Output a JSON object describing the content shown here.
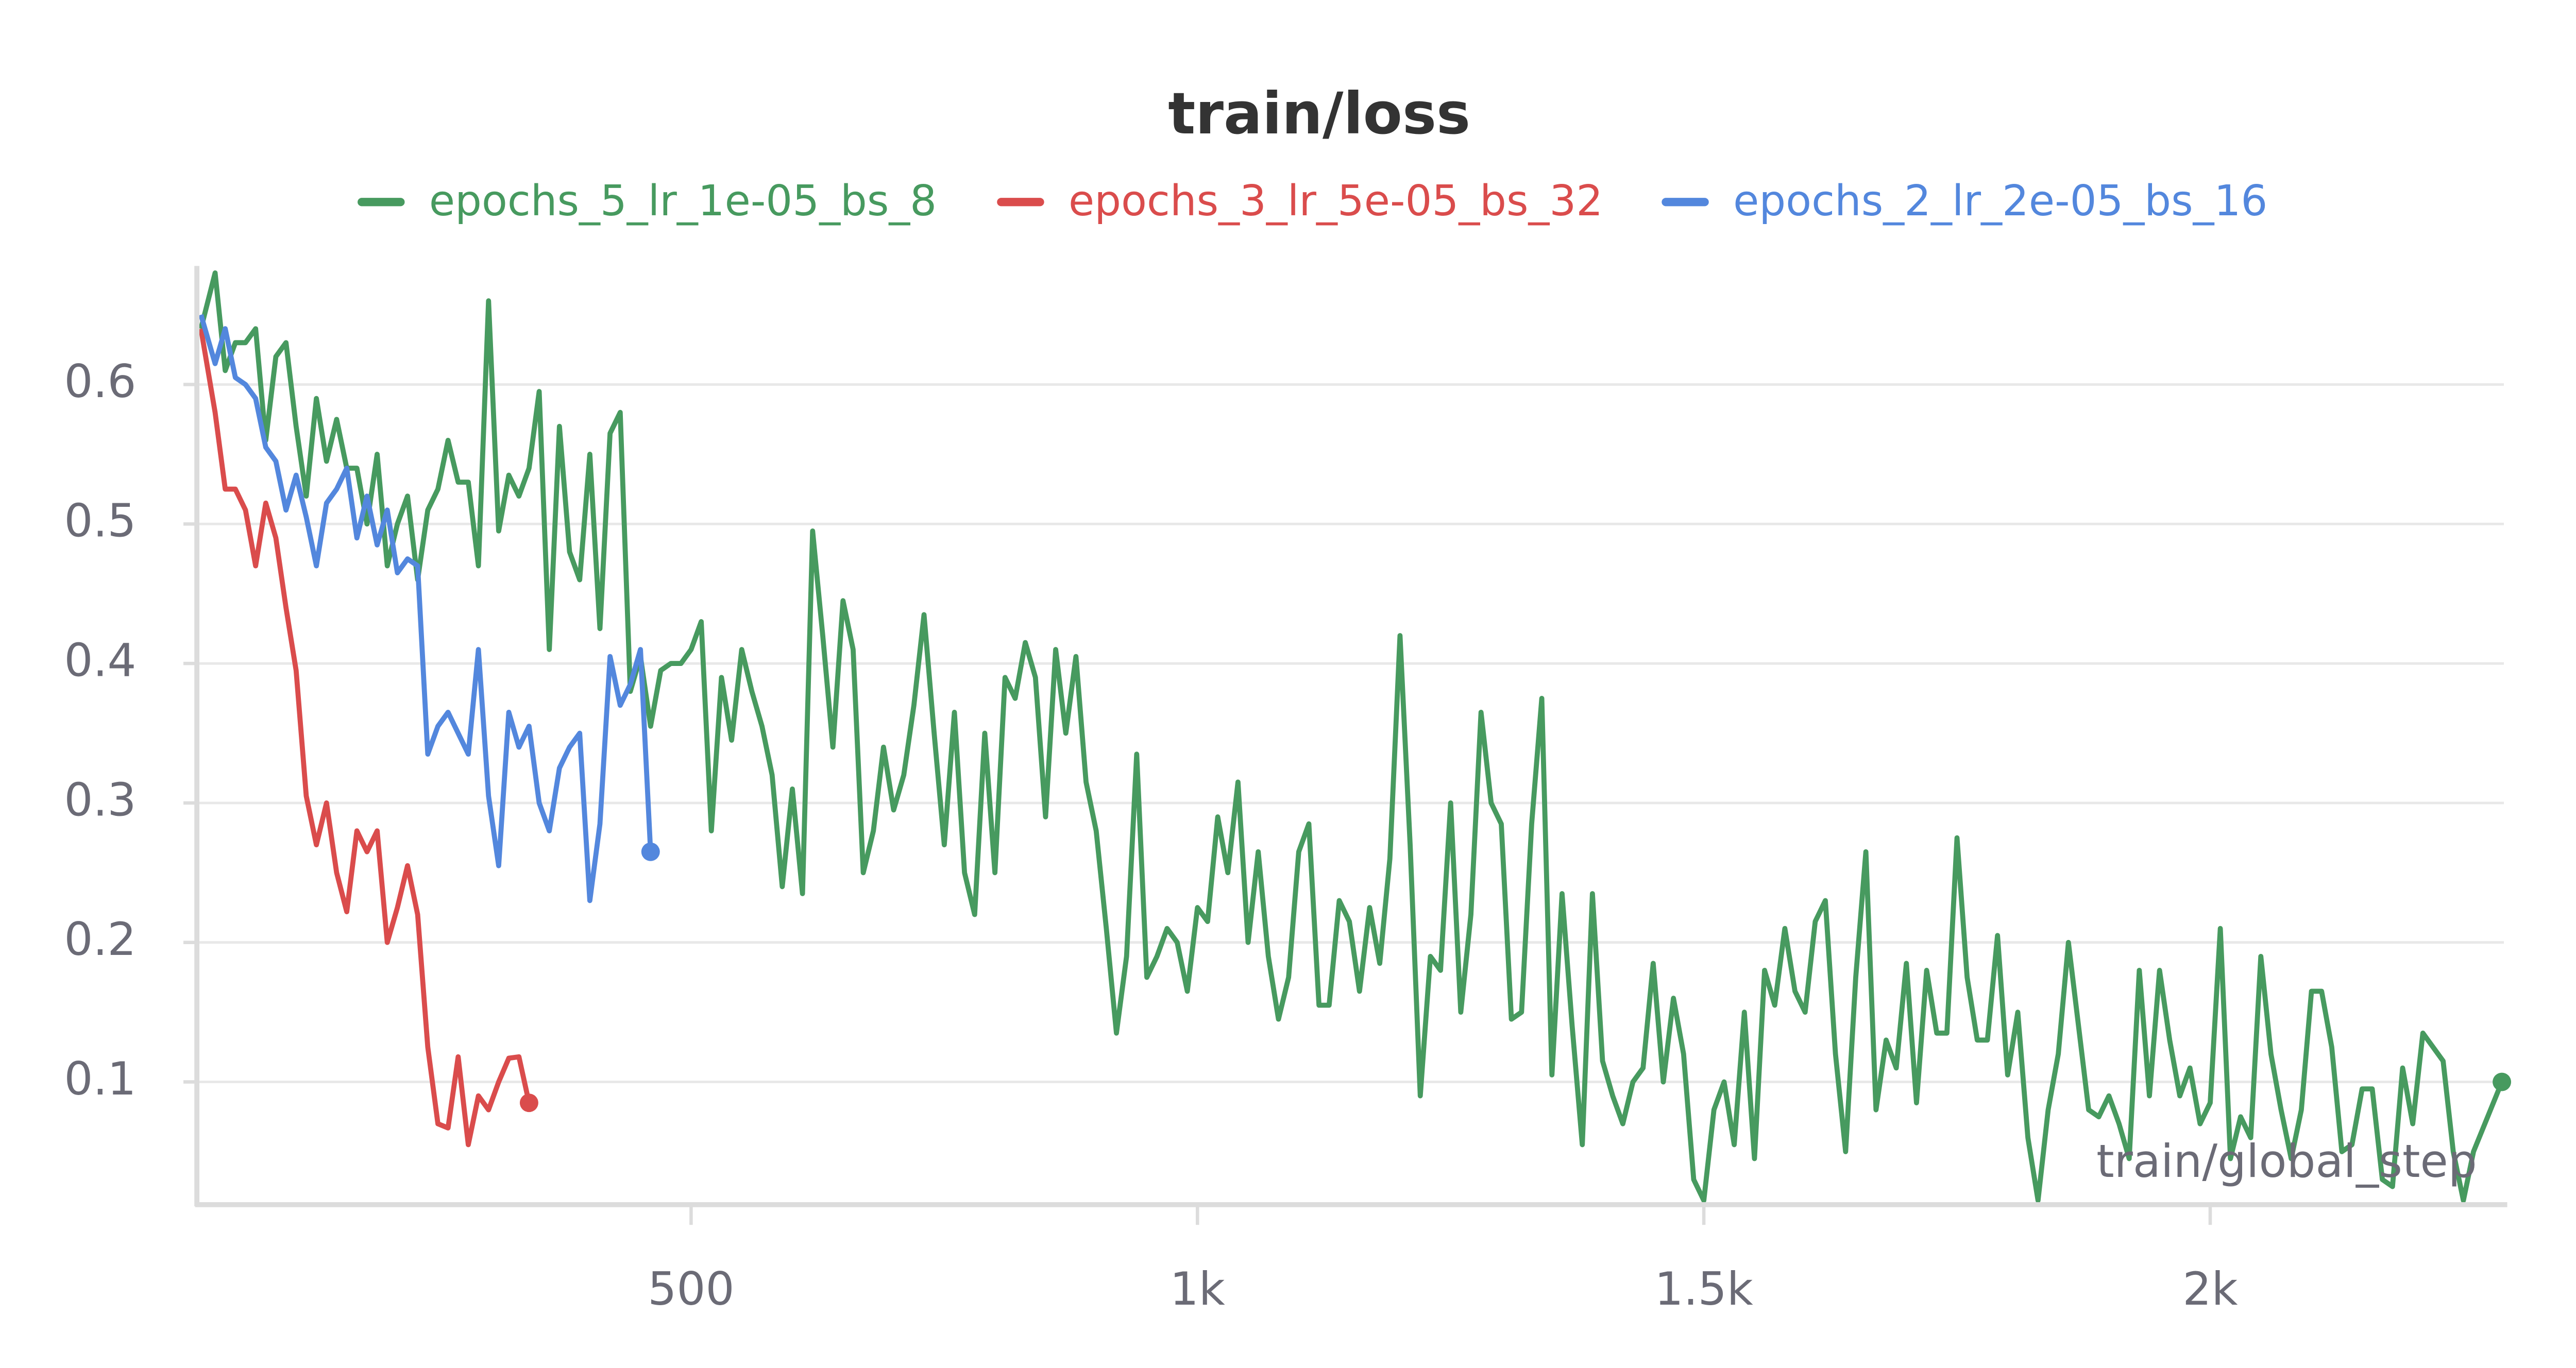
{
  "chart_data": {
    "type": "line",
    "title": "train/loss",
    "xlabel": "train/global_step",
    "xlim": [
      12,
      2290
    ],
    "ylim": [
      0.012,
      0.685
    ],
    "xticks": [
      500,
      {
        "value": 1000,
        "label": "1k"
      },
      {
        "value": 1500,
        "label": "1.5k"
      },
      {
        "value": 2000,
        "label": "2k"
      }
    ],
    "yticks": [
      0.1,
      0.2,
      0.3,
      0.4,
      0.5,
      0.6
    ],
    "grid": true,
    "legend": "top",
    "series": [
      {
        "name": "epochs_5_lr_1e-05_bs_8",
        "color": "#479a5f",
        "x": [
          16,
          30,
          40,
          50,
          60,
          70,
          80,
          90,
          100,
          110,
          120,
          130,
          140,
          150,
          160,
          170,
          180,
          190,
          200,
          210,
          220,
          230,
          240,
          250,
          260,
          270,
          280,
          290,
          300,
          310,
          320,
          330,
          340,
          350,
          360,
          370,
          380,
          390,
          400,
          410,
          420,
          430,
          440,
          450,
          460,
          470,
          480,
          490,
          500,
          510,
          520,
          530,
          540,
          550,
          560,
          570,
          580,
          590,
          600,
          610,
          620,
          630,
          640,
          650,
          660,
          670,
          680,
          690,
          700,
          710,
          720,
          730,
          740,
          750,
          760,
          770,
          780,
          790,
          800,
          810,
          820,
          830,
          840,
          850,
          860,
          870,
          880,
          890,
          900,
          910,
          920,
          930,
          940,
          950,
          960,
          970,
          980,
          990,
          1000,
          1010,
          1020,
          1030,
          1040,
          1050,
          1060,
          1070,
          1080,
          1090,
          1100,
          1110,
          1120,
          1130,
          1140,
          1150,
          1160,
          1170,
          1180,
          1190,
          1200,
          1210,
          1220,
          1230,
          1240,
          1250,
          1260,
          1270,
          1280,
          1290,
          1300,
          1310,
          1320,
          1330,
          1340,
          1350,
          1360,
          1370,
          1380,
          1390,
          1400,
          1410,
          1420,
          1430,
          1440,
          1450,
          1460,
          1470,
          1480,
          1490,
          1500,
          1510,
          1520,
          1530,
          1540,
          1550,
          1560,
          1570,
          1580,
          1590,
          1600,
          1610,
          1620,
          1630,
          1640,
          1650,
          1660,
          1670,
          1680,
          1690,
          1700,
          1710,
          1720,
          1730,
          1740,
          1750,
          1760,
          1770,
          1780,
          1790,
          1800,
          1810,
          1820,
          1830,
          1840,
          1850,
          1860,
          1870,
          1880,
          1890,
          1900,
          1910,
          1920,
          1930,
          1940,
          1950,
          1960,
          1970,
          1980,
          1990,
          2000,
          2010,
          2020,
          2030,
          2040,
          2050,
          2060,
          2070,
          2080,
          2090,
          2100,
          2110,
          2120,
          2130,
          2140,
          2150,
          2160,
          2170,
          2180,
          2190,
          2200,
          2210,
          2220,
          2230,
          2240,
          2250,
          2260,
          2288
        ],
        "values": [
          0.64,
          0.68,
          0.61,
          0.63,
          0.63,
          0.64,
          0.56,
          0.62,
          0.63,
          0.57,
          0.52,
          0.59,
          0.545,
          0.575,
          0.54,
          0.54,
          0.5,
          0.55,
          0.47,
          0.5,
          0.52,
          0.46,
          0.51,
          0.525,
          0.56,
          0.53,
          0.53,
          0.47,
          0.66,
          0.495,
          0.535,
          0.52,
          0.54,
          0.595,
          0.41,
          0.57,
          0.48,
          0.46,
          0.55,
          0.425,
          0.565,
          0.58,
          0.38,
          0.405,
          0.355,
          0.395,
          0.4,
          0.4,
          0.41,
          0.43,
          0.28,
          0.39,
          0.345,
          0.41,
          0.38,
          0.355,
          0.32,
          0.24,
          0.31,
          0.235,
          0.495,
          0.42,
          0.34,
          0.445,
          0.41,
          0.25,
          0.28,
          0.34,
          0.295,
          0.32,
          0.37,
          0.435,
          0.35,
          0.27,
          0.365,
          0.25,
          0.22,
          0.35,
          0.25,
          0.39,
          0.375,
          0.415,
          0.39,
          0.29,
          0.41,
          0.35,
          0.405,
          0.315,
          0.28,
          0.21,
          0.135,
          0.19,
          0.335,
          0.175,
          0.19,
          0.21,
          0.2,
          0.165,
          0.225,
          0.215,
          0.29,
          0.25,
          0.315,
          0.2,
          0.265,
          0.19,
          0.145,
          0.175,
          0.265,
          0.285,
          0.155,
          0.155,
          0.23,
          0.215,
          0.165,
          0.225,
          0.185,
          0.26,
          0.42,
          0.27,
          0.09,
          0.19,
          0.18,
          0.3,
          0.15,
          0.22,
          0.365,
          0.3,
          0.285,
          0.145,
          0.15,
          0.285,
          0.375,
          0.105,
          0.235,
          0.14,
          0.055,
          0.235,
          0.115,
          0.09,
          0.07,
          0.1,
          0.11,
          0.185,
          0.1,
          0.16,
          0.12,
          0.03,
          0.015,
          0.08,
          0.1,
          0.055,
          0.15,
          0.045,
          0.18,
          0.155,
          0.21,
          0.165,
          0.15,
          0.215,
          0.23,
          0.12,
          0.05,
          0.175,
          0.265,
          0.08,
          0.13,
          0.11,
          0.185,
          0.085,
          0.18,
          0.135,
          0.135,
          0.275,
          0.175,
          0.13,
          0.13,
          0.205,
          0.105,
          0.15,
          0.06,
          0.015,
          0.08,
          0.12,
          0.2,
          0.14,
          0.08,
          0.075,
          0.09,
          0.07,
          0.045,
          0.18,
          0.09,
          0.18,
          0.13,
          0.09,
          0.11,
          0.07,
          0.085,
          0.21,
          0.045,
          0.075,
          0.06,
          0.19,
          0.12,
          0.08,
          0.045,
          0.08,
          0.165,
          0.165,
          0.125,
          0.05,
          0.055,
          0.095,
          0.095,
          0.03,
          0.025,
          0.11,
          0.07,
          0.135,
          0.125,
          0.115,
          0.05,
          0.015,
          0.05,
          0.1
        ]
      },
      {
        "name": "epochs_3_lr_5e-05_bs_32",
        "color": "#da4c4c",
        "x": [
          16,
          30,
          40,
          50,
          60,
          70,
          80,
          90,
          100,
          110,
          120,
          130,
          140,
          150,
          160,
          170,
          180,
          190,
          200,
          210,
          220,
          230,
          240,
          250,
          260,
          270,
          280,
          290,
          300,
          310,
          320,
          330,
          340
        ],
        "values": [
          0.64,
          0.58,
          0.525,
          0.525,
          0.51,
          0.47,
          0.515,
          0.49,
          0.44,
          0.395,
          0.305,
          0.27,
          0.3,
          0.25,
          0.222,
          0.28,
          0.265,
          0.28,
          0.2,
          0.225,
          0.255,
          0.22,
          0.125,
          0.07,
          0.067,
          0.118,
          0.055,
          0.09,
          0.08,
          0.1,
          0.117,
          0.118,
          0.085
        ]
      },
      {
        "name": "epochs_2_lr_2e-05_bs_16",
        "color": "#5387dd",
        "x": [
          16,
          30,
          40,
          50,
          60,
          70,
          80,
          90,
          100,
          110,
          120,
          130,
          140,
          150,
          160,
          170,
          180,
          190,
          200,
          210,
          220,
          230,
          240,
          250,
          260,
          270,
          280,
          290,
          300,
          310,
          320,
          330,
          340,
          350,
          360,
          370,
          380,
          390,
          400,
          410,
          420,
          430,
          440,
          450,
          460
        ],
        "values": [
          0.65,
          0.615,
          0.64,
          0.605,
          0.6,
          0.59,
          0.555,
          0.545,
          0.51,
          0.535,
          0.505,
          0.47,
          0.515,
          0.525,
          0.54,
          0.49,
          0.52,
          0.485,
          0.51,
          0.465,
          0.475,
          0.47,
          0.335,
          0.355,
          0.365,
          0.35,
          0.335,
          0.41,
          0.305,
          0.255,
          0.365,
          0.34,
          0.355,
          0.3,
          0.28,
          0.325,
          0.34,
          0.35,
          0.23,
          0.285,
          0.405,
          0.37,
          0.385,
          0.41,
          0.265
        ]
      }
    ]
  }
}
